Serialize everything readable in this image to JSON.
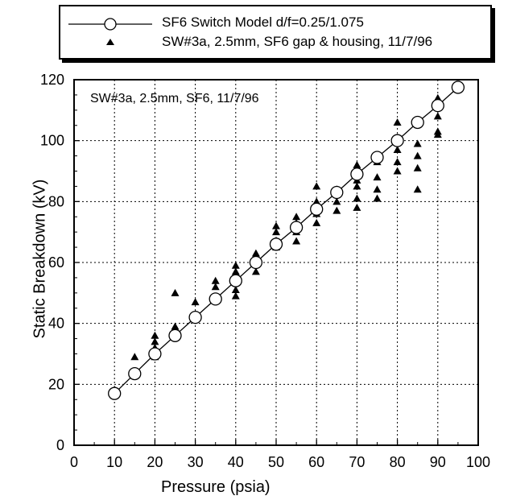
{
  "chart_data": {
    "type": "scatter",
    "xlabel": "Pressure (psia)",
    "ylabel": "Static Breakdown (kV)",
    "xlim": [
      0,
      100
    ],
    "ylim": [
      0,
      120
    ],
    "x_ticks": [
      "0",
      "10",
      "20",
      "30",
      "40",
      "50",
      "60",
      "70",
      "80",
      "90",
      "100"
    ],
    "y_ticks": [
      "0",
      "20",
      "40",
      "60",
      "80",
      "100",
      "120"
    ],
    "grid": true,
    "legend_position": "top, above plot",
    "annotation": "SW#3a, 2.5mm, SF6, 11/7/96",
    "series": [
      {
        "name": "SF6 Switch Model d/f=0.25/1.075",
        "marker": "open-circle-with-line",
        "color": "#000000",
        "points": [
          [
            10,
            17
          ],
          [
            15,
            23.5
          ],
          [
            20,
            30
          ],
          [
            25,
            36
          ],
          [
            30,
            42
          ],
          [
            35,
            48
          ],
          [
            40,
            54
          ],
          [
            45,
            60
          ],
          [
            50,
            66
          ],
          [
            55,
            71.5
          ],
          [
            60,
            77.5
          ],
          [
            65,
            83
          ],
          [
            70,
            89
          ],
          [
            75,
            94.5
          ],
          [
            80,
            100
          ],
          [
            85,
            106
          ],
          [
            90,
            111.5
          ],
          [
            95,
            117.5
          ]
        ]
      },
      {
        "name": "SW#3a, 2.5mm, SF6 gap & housing, 11/7/96",
        "marker": "filled-triangle",
        "color": "#000000",
        "points": [
          [
            15,
            29
          ],
          [
            15,
            24
          ],
          [
            20,
            36
          ],
          [
            20,
            34
          ],
          [
            20,
            32
          ],
          [
            20,
            29
          ],
          [
            25,
            50
          ],
          [
            25,
            39
          ],
          [
            25,
            37
          ],
          [
            30,
            47
          ],
          [
            30,
            43
          ],
          [
            30,
            42
          ],
          [
            35,
            54
          ],
          [
            35,
            52
          ],
          [
            35,
            48
          ],
          [
            40,
            59
          ],
          [
            40,
            57
          ],
          [
            40,
            54
          ],
          [
            40,
            51
          ],
          [
            40,
            49
          ],
          [
            45,
            63
          ],
          [
            45,
            62
          ],
          [
            45,
            60
          ],
          [
            45,
            57
          ],
          [
            50,
            72
          ],
          [
            50,
            70
          ],
          [
            50,
            67
          ],
          [
            50,
            65
          ],
          [
            55,
            75
          ],
          [
            55,
            73
          ],
          [
            55,
            70
          ],
          [
            55,
            67
          ],
          [
            60,
            85
          ],
          [
            60,
            80
          ],
          [
            60,
            76
          ],
          [
            60,
            73
          ],
          [
            65,
            84
          ],
          [
            65,
            80
          ],
          [
            65,
            77
          ],
          [
            70,
            92
          ],
          [
            70,
            87
          ],
          [
            70,
            85
          ],
          [
            70,
            81
          ],
          [
            70,
            78
          ],
          [
            75,
            93
          ],
          [
            75,
            88
          ],
          [
            75,
            84
          ],
          [
            75,
            81
          ],
          [
            80,
            106
          ],
          [
            80,
            101
          ],
          [
            80,
            97
          ],
          [
            80,
            93
          ],
          [
            80,
            90
          ],
          [
            85,
            99
          ],
          [
            85,
            95
          ],
          [
            85,
            91
          ],
          [
            85,
            84
          ],
          [
            90,
            114
          ],
          [
            90,
            108
          ],
          [
            90,
            103
          ],
          [
            90,
            102
          ]
        ]
      }
    ]
  }
}
